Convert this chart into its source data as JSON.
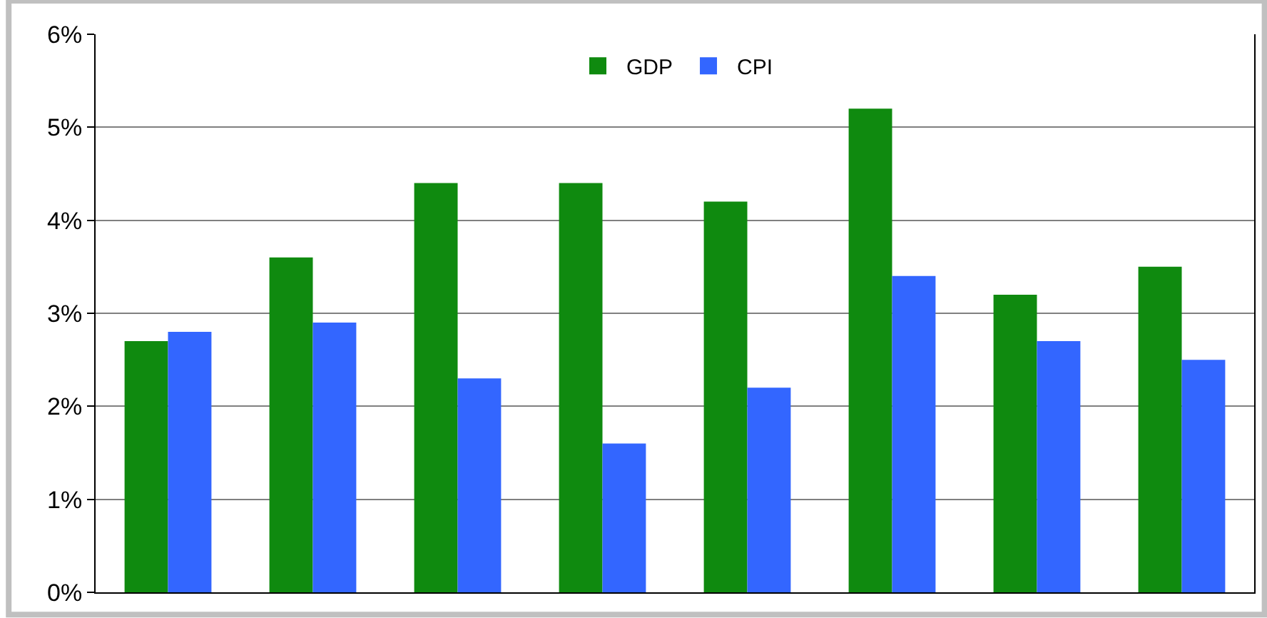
{
  "chart_data": {
    "type": "bar",
    "categories": [
      null,
      null,
      null,
      null,
      null,
      null,
      null,
      null
    ],
    "series": [
      {
        "name": "GDP",
        "color": "#0f8a0f",
        "values": [
          2.7,
          3.6,
          4.4,
          4.4,
          4.2,
          5.2,
          3.2,
          3.5
        ]
      },
      {
        "name": "CPI",
        "color": "#3366ff",
        "values": [
          2.8,
          2.9,
          2.3,
          1.6,
          2.2,
          3.4,
          2.7,
          2.5
        ]
      }
    ],
    "ylim": [
      0,
      6
    ],
    "yticks": [
      {
        "value": 0,
        "label": "0%"
      },
      {
        "value": 1,
        "label": "1%"
      },
      {
        "value": 2,
        "label": "2%"
      },
      {
        "value": 3,
        "label": "3%"
      },
      {
        "value": 4,
        "label": "4%"
      },
      {
        "value": 5,
        "label": "5%"
      },
      {
        "value": 6,
        "label": "6%"
      }
    ],
    "grid": "y",
    "legend": "top",
    "tick_labels": "y"
  }
}
